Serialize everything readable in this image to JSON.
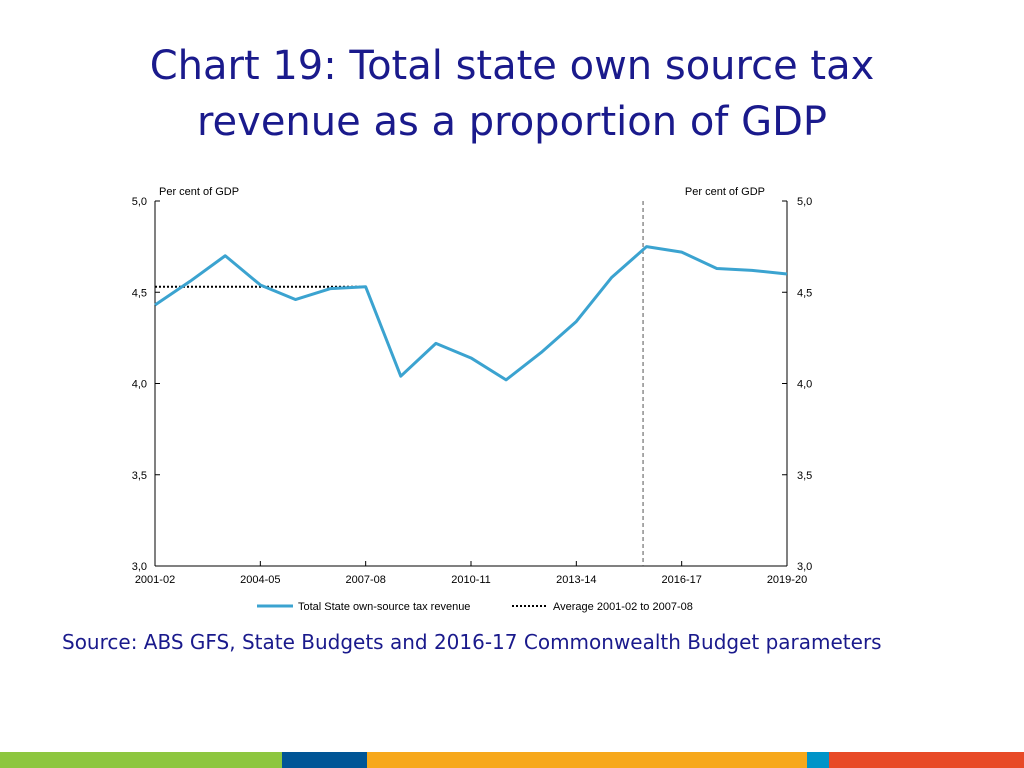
{
  "slide": {
    "title_line1": "Chart 19: Total state own source tax",
    "title_line2": "revenue as a proportion of GDP",
    "source": "Source: ABS GFS, State Budgets and 2016-17 Commonwealth Budget parameters",
    "bottom_bar_colors": [
      "#8dc63f",
      "#005596",
      "#f7a81b",
      "#0094c8",
      "#e84a27"
    ]
  },
  "chart_data": {
    "type": "line",
    "title": "",
    "ylabel_left": "Per cent of GDP",
    "ylabel_right": "Per cent of GDP",
    "ylim": [
      3.0,
      5.0
    ],
    "yticks": [
      "3,0",
      "3,5",
      "4,0",
      "4,5",
      "5,0"
    ],
    "ytick_values": [
      3.0,
      3.5,
      4.0,
      4.5,
      5.0
    ],
    "x": [
      "2001-02",
      "2002-03",
      "2003-04",
      "2004-05",
      "2005-06",
      "2006-07",
      "2007-08",
      "2008-09",
      "2009-10",
      "2010-11",
      "2011-12",
      "2012-13",
      "2013-14",
      "2014-15",
      "2015-16",
      "2016-17",
      "2017-18",
      "2018-19",
      "2019-20"
    ],
    "xtick_labels": [
      "2001-02",
      "2004-05",
      "2007-08",
      "2010-11",
      "2013-14",
      "2016-17",
      "2019-20"
    ],
    "series": [
      {
        "name": "Total State own-source tax revenue",
        "style": "solid",
        "color": "#3ba3d0",
        "values": [
          4.43,
          4.56,
          4.7,
          4.54,
          4.46,
          4.52,
          4.53,
          4.04,
          4.22,
          4.14,
          4.02,
          4.17,
          4.34,
          4.58,
          4.75,
          4.72,
          4.63,
          4.62,
          4.6
        ]
      },
      {
        "name": "Average 2001-02 to 2007-08",
        "style": "dotted",
        "color": "#000000",
        "x_range": [
          "2001-02",
          "2007-08"
        ],
        "value": 4.53
      }
    ],
    "forecast_divider_after": "2015-16",
    "grid": false,
    "legend_position": "bottom"
  }
}
